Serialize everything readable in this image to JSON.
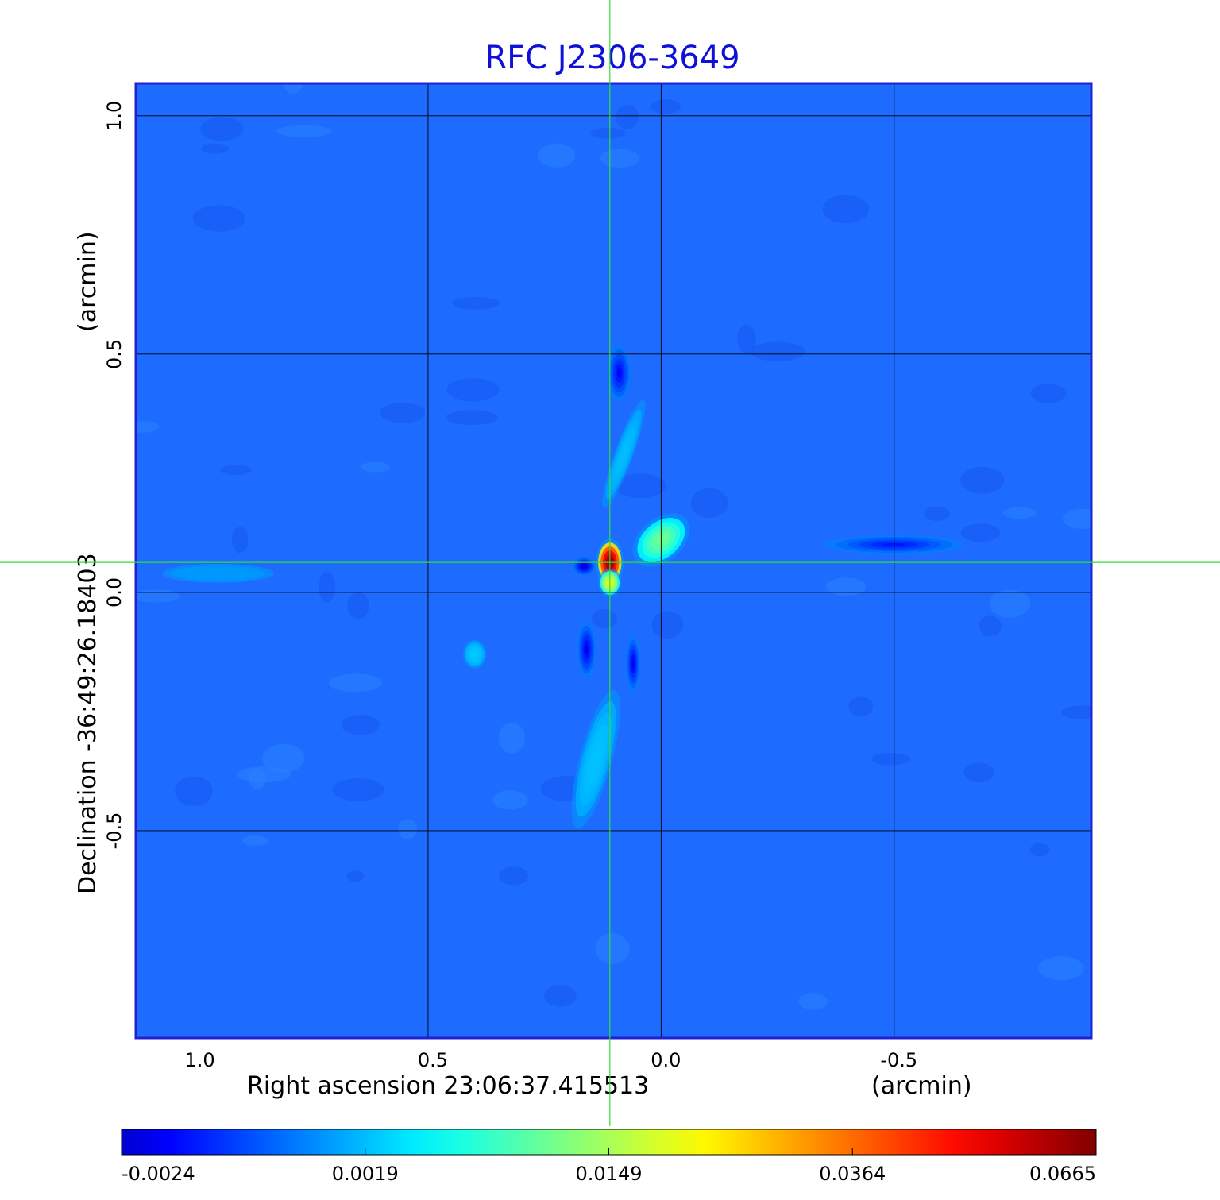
{
  "chart_data": {
    "type": "heatmap",
    "title": "RFC J2306-3649",
    "xlabel": "Right ascension  23:06:37.415513",
    "xunit": "(arcmin)",
    "ylabel": "Declination  -36:49:26.18403",
    "yunit": "(arcmin)",
    "x_ticks": [
      {
        "value": 1.0,
        "label": "1.0"
      },
      {
        "value": 0.5,
        "label": "0.5"
      },
      {
        "value": 0.0,
        "label": "0.0"
      },
      {
        "value": -0.5,
        "label": "-0.5"
      }
    ],
    "y_ticks": [
      {
        "value": 1.0,
        "label": "1.0"
      },
      {
        "value": 0.5,
        "label": "0.5"
      },
      {
        "value": 0.0,
        "label": "0.0"
      },
      {
        "value": -0.5,
        "label": "-0.5"
      }
    ],
    "xlim": [
      1.127,
      -0.923
    ],
    "ylim": [
      -0.935,
      1.068
    ],
    "grid": true,
    "crosshair": {
      "x": 0.11,
      "y": 0.063
    },
    "colorbar": {
      "colormap": "jet",
      "ticks": [
        "-0.0024",
        "0.0019",
        "0.0149",
        "0.0364",
        "0.0665"
      ]
    },
    "features": [
      {
        "x": 0.11,
        "y": 0.063,
        "intensity": 0.0665,
        "sx": 0.03,
        "sy": 0.05,
        "rot": 0
      },
      {
        "x": 0.11,
        "y": 0.02,
        "intensity": 0.02,
        "sx": 0.025,
        "sy": 0.03,
        "rot": 0
      },
      {
        "x": 0.0,
        "y": 0.11,
        "intensity": 0.012,
        "sx": 0.07,
        "sy": 0.045,
        "rot": -40
      },
      {
        "x": 0.165,
        "y": 0.055,
        "intensity": -0.0024,
        "sx": 0.025,
        "sy": 0.02,
        "rot": 0
      },
      {
        "x": 0.16,
        "y": -0.12,
        "intensity": -0.0018,
        "sx": 0.02,
        "sy": 0.06,
        "rot": 0
      },
      {
        "x": 0.06,
        "y": -0.15,
        "intensity": -0.0018,
        "sx": 0.015,
        "sy": 0.06,
        "rot": 0
      },
      {
        "x": 0.09,
        "y": 0.46,
        "intensity": -0.0016,
        "sx": 0.025,
        "sy": 0.06,
        "rot": 0
      },
      {
        "x": 0.4,
        "y": -0.13,
        "intensity": 0.0025,
        "sx": 0.025,
        "sy": 0.03,
        "rot": 0
      },
      {
        "x": 0.14,
        "y": -0.35,
        "intensity": 0.0022,
        "sx": 0.035,
        "sy": 0.15,
        "rot": 15
      },
      {
        "x": 0.08,
        "y": 0.29,
        "intensity": 0.002,
        "sx": 0.02,
        "sy": 0.12,
        "rot": 20
      },
      {
        "x": -0.5,
        "y": 0.1,
        "intensity": -0.0012,
        "sx": 0.15,
        "sy": 0.02,
        "rot": 0
      },
      {
        "x": 0.95,
        "y": 0.04,
        "intensity": 0.0012,
        "sx": 0.12,
        "sy": 0.02,
        "rot": 0
      }
    ]
  }
}
